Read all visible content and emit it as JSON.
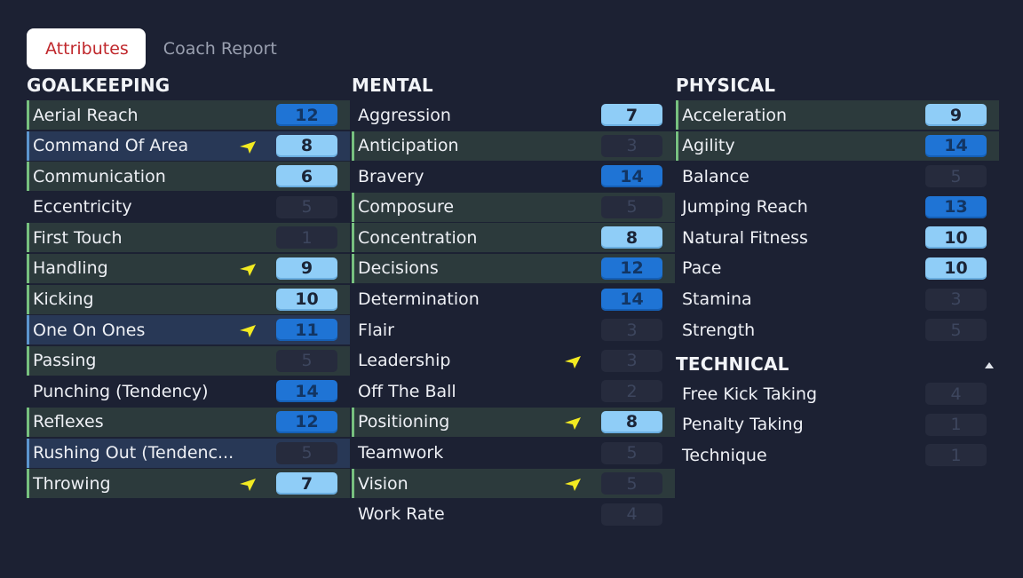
{
  "tabs": [
    {
      "label": "Attributes",
      "active": true
    },
    {
      "label": "Coach Report",
      "active": false
    }
  ],
  "colors": {
    "background": "#1c2133",
    "highlight_green": "#77c07f",
    "highlight_blue": "#5c95cf",
    "value_light": "#8fcdf7",
    "value_dark": "#1f74d5",
    "value_dim": "#262b3d",
    "arrow_yellow": "#f2ea21"
  },
  "icons": {
    "arrow": "yellow-arrow-icon",
    "collapse": "collapse-triangle-icon"
  },
  "goalkeeping": {
    "title": "GOALKEEPING",
    "items": [
      {
        "name": "Aerial Reach",
        "value": "12",
        "style": "dark",
        "hl": "green",
        "arrow": false
      },
      {
        "name": "Command Of Area",
        "value": "8",
        "style": "light",
        "hl": "blue",
        "arrow": true
      },
      {
        "name": "Communication",
        "value": "6",
        "style": "light",
        "hl": "green",
        "arrow": false
      },
      {
        "name": "Eccentricity",
        "value": "5",
        "style": "dim",
        "hl": "",
        "arrow": false
      },
      {
        "name": "First Touch",
        "value": "1",
        "style": "dim",
        "hl": "green",
        "arrow": false
      },
      {
        "name": "Handling",
        "value": "9",
        "style": "light",
        "hl": "green",
        "arrow": true
      },
      {
        "name": "Kicking",
        "value": "10",
        "style": "light",
        "hl": "green",
        "arrow": false
      },
      {
        "name": "One On Ones",
        "value": "11",
        "style": "dark",
        "hl": "blue",
        "arrow": true
      },
      {
        "name": "Passing",
        "value": "5",
        "style": "dim",
        "hl": "green",
        "arrow": false
      },
      {
        "name": "Punching (Tendency)",
        "value": "14",
        "style": "dark",
        "hl": "",
        "arrow": false
      },
      {
        "name": "Reflexes",
        "value": "12",
        "style": "dark",
        "hl": "green",
        "arrow": false
      },
      {
        "name": "Rushing Out (Tendenc...",
        "value": "5",
        "style": "dim",
        "hl": "blue",
        "arrow": false
      },
      {
        "name": "Throwing",
        "value": "7",
        "style": "light",
        "hl": "green",
        "arrow": true
      }
    ]
  },
  "mental": {
    "title": "MENTAL",
    "items": [
      {
        "name": "Aggression",
        "value": "7",
        "style": "light",
        "hl": "",
        "arrow": false
      },
      {
        "name": "Anticipation",
        "value": "3",
        "style": "dim",
        "hl": "green",
        "arrow": false
      },
      {
        "name": "Bravery",
        "value": "14",
        "style": "dark",
        "hl": "",
        "arrow": false
      },
      {
        "name": "Composure",
        "value": "5",
        "style": "dim",
        "hl": "green",
        "arrow": false
      },
      {
        "name": "Concentration",
        "value": "8",
        "style": "light",
        "hl": "green",
        "arrow": false
      },
      {
        "name": "Decisions",
        "value": "12",
        "style": "dark",
        "hl": "green",
        "arrow": false
      },
      {
        "name": "Determination",
        "value": "14",
        "style": "dark",
        "hl": "",
        "arrow": false
      },
      {
        "name": "Flair",
        "value": "3",
        "style": "dim",
        "hl": "",
        "arrow": false
      },
      {
        "name": "Leadership",
        "value": "3",
        "style": "dim",
        "hl": "",
        "arrow": true
      },
      {
        "name": "Off The Ball",
        "value": "2",
        "style": "dim",
        "hl": "",
        "arrow": false
      },
      {
        "name": "Positioning",
        "value": "8",
        "style": "light",
        "hl": "green",
        "arrow": true
      },
      {
        "name": "Teamwork",
        "value": "5",
        "style": "dim",
        "hl": "",
        "arrow": false
      },
      {
        "name": "Vision",
        "value": "5",
        "style": "dim",
        "hl": "green",
        "arrow": true
      },
      {
        "name": "Work Rate",
        "value": "4",
        "style": "dim",
        "hl": "",
        "arrow": false
      }
    ]
  },
  "physical": {
    "title": "PHYSICAL",
    "items": [
      {
        "name": "Acceleration",
        "value": "9",
        "style": "light",
        "hl": "green",
        "arrow": false
      },
      {
        "name": "Agility",
        "value": "14",
        "style": "dark",
        "hl": "green",
        "arrow": false
      },
      {
        "name": "Balance",
        "value": "5",
        "style": "dim",
        "hl": "",
        "arrow": false
      },
      {
        "name": "Jumping Reach",
        "value": "13",
        "style": "dark",
        "hl": "",
        "arrow": false
      },
      {
        "name": "Natural Fitness",
        "value": "10",
        "style": "light",
        "hl": "",
        "arrow": false
      },
      {
        "name": "Pace",
        "value": "10",
        "style": "light",
        "hl": "",
        "arrow": false
      },
      {
        "name": "Stamina",
        "value": "3",
        "style": "dim",
        "hl": "",
        "arrow": false
      },
      {
        "name": "Strength",
        "value": "5",
        "style": "dim",
        "hl": "",
        "arrow": false
      }
    ]
  },
  "technical": {
    "title": "TECHNICAL",
    "items": [
      {
        "name": "Free Kick Taking",
        "value": "4",
        "style": "dim",
        "hl": "",
        "arrow": false
      },
      {
        "name": "Penalty Taking",
        "value": "1",
        "style": "dim",
        "hl": "",
        "arrow": false
      },
      {
        "name": "Technique",
        "value": "1",
        "style": "dim",
        "hl": "",
        "arrow": false
      }
    ]
  }
}
